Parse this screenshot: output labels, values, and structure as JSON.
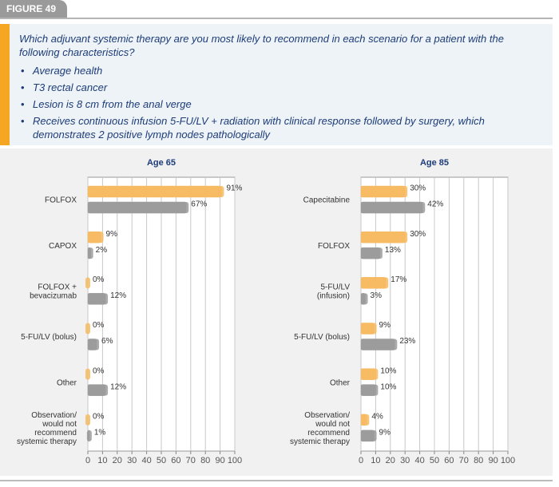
{
  "header": {
    "tab": "FIGURE 49",
    "question": "Which adjuvant systemic therapy are you most likely to recommend in each scenario for a patient with the following characteristics?",
    "bullets": [
      "Average health",
      "T3 rectal cancer",
      "Lesion is 8 cm from the anal verge",
      "Receives continuous infusion 5-FU/LV + radiation with clinical response followed by surgery, which demonstrates 2 positive lymph nodes pathologically"
    ]
  },
  "chart_data": [
    {
      "type": "hbar",
      "title": "Age 65",
      "categories": [
        "FOLFOX",
        "CAPOX",
        "FOLFOX +\nbevacizumab",
        "5-FU/LV (bolus)",
        "Other",
        "Observation/\nwould not\nrecommend\nsystemic therapy"
      ],
      "series": [
        {
          "color": "#f6bb63",
          "values": [
            91,
            9,
            0,
            0,
            0,
            0
          ],
          "value_labels": [
            "91%",
            "9%",
            "0%",
            "0%",
            "0%",
            "0%"
          ]
        },
        {
          "color": "#9c9c9c",
          "values": [
            67,
            2,
            12,
            6,
            12,
            1
          ],
          "value_labels": [
            "67%",
            "2%",
            "12%",
            "6%",
            "12%",
            "1%"
          ]
        }
      ],
      "xlim": [
        0,
        100
      ],
      "xticks": [
        0,
        10,
        20,
        30,
        40,
        50,
        60,
        70,
        80,
        90,
        100
      ],
      "grid": true
    },
    {
      "type": "hbar",
      "title": "Age 85",
      "categories": [
        "Capecitabine",
        "FOLFOX",
        "5-FU/LV\n(infusion)",
        "5-FU/LV (bolus)",
        "Other",
        "Observation/\nwould not\nrecommend\nsystemic therapy"
      ],
      "series": [
        {
          "color": "#f6bb63",
          "values": [
            30,
            30,
            17,
            9,
            10,
            4
          ],
          "value_labels": [
            "30%",
            "30%",
            "17%",
            "9%",
            "10%",
            "4%"
          ]
        },
        {
          "color": "#9c9c9c",
          "values": [
            42,
            13,
            3,
            23,
            10,
            9
          ],
          "value_labels": [
            "42%",
            "13%",
            "3%",
            "23%",
            "10%",
            "9%"
          ]
        }
      ],
      "xlim": [
        0,
        100
      ],
      "xticks": [
        0,
        10,
        20,
        30,
        40,
        50,
        60,
        70,
        80,
        90,
        100
      ],
      "grid": true
    }
  ]
}
